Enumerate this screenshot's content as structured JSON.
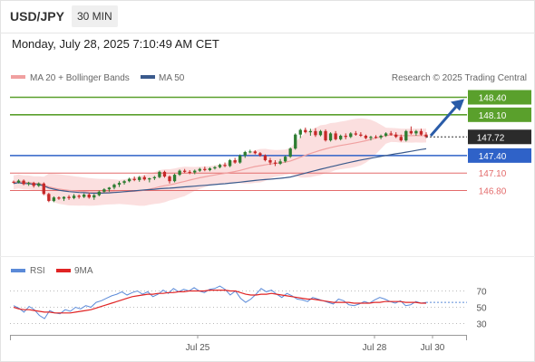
{
  "header": {
    "symbol": "USD/JPY",
    "interval": "30 MIN",
    "datetime": "Monday, July 28, 2025 7:10:49 AM CET"
  },
  "legend": {
    "ma20_bb": "MA 20 + Bollinger Bands",
    "ma50": "MA 50",
    "credit": "Research © 2025 Trading Central"
  },
  "colors": {
    "up": "#2e7d32",
    "down": "#c62828",
    "resistance": "#5aa02c",
    "support": "#2f62c8",
    "minor_support": "#e36b6b",
    "ma20": "#f0a0a0",
    "bollinger_fill": "#fbdcdc",
    "ma50": "#3a5a8c",
    "rsi": "#5b8ad8",
    "rsi_ma": "#e02424",
    "arrow": "#2a5ca8",
    "last_price_bg": "#2b2b2b"
  },
  "chart_data": [
    {
      "type": "candlestick",
      "title": "",
      "yrange": [
        146.5,
        148.5
      ],
      "levels": [
        {
          "value": 148.4,
          "label": "148.40",
          "role": "resistance"
        },
        {
          "value": 148.1,
          "label": "148.10",
          "role": "resistance"
        },
        {
          "value": 147.4,
          "label": "147.40",
          "role": "pivot"
        },
        {
          "value": 147.1,
          "label": "147.10",
          "role": "support"
        },
        {
          "value": 146.8,
          "label": "146.80",
          "role": "support"
        }
      ],
      "last_price": {
        "value": 147.72,
        "label": "147.72"
      },
      "candles_ohlc": [
        [
          146.95,
          146.97,
          146.92,
          146.94
        ],
        [
          146.94,
          146.99,
          146.92,
          146.97
        ],
        [
          146.97,
          146.99,
          146.89,
          146.91
        ],
        [
          146.91,
          146.95,
          146.88,
          146.93
        ],
        [
          146.93,
          146.95,
          146.85,
          146.88
        ],
        [
          146.88,
          146.94,
          146.86,
          146.92
        ],
        [
          146.92,
          146.94,
          146.72,
          146.74
        ],
        [
          146.74,
          146.76,
          146.6,
          146.62
        ],
        [
          146.62,
          146.7,
          146.6,
          146.68
        ],
        [
          146.68,
          146.7,
          146.64,
          146.66
        ],
        [
          146.66,
          146.7,
          146.62,
          146.69
        ],
        [
          146.69,
          146.72,
          146.64,
          146.67
        ],
        [
          146.67,
          146.74,
          146.65,
          146.71
        ],
        [
          146.71,
          146.73,
          146.66,
          146.69
        ],
        [
          146.69,
          146.75,
          146.67,
          146.73
        ],
        [
          146.73,
          146.76,
          146.66,
          146.68
        ],
        [
          146.68,
          146.74,
          146.64,
          146.72
        ],
        [
          146.72,
          146.8,
          146.7,
          146.78
        ],
        [
          146.78,
          146.84,
          146.76,
          146.82
        ],
        [
          146.82,
          146.86,
          146.78,
          146.85
        ],
        [
          146.85,
          146.92,
          146.82,
          146.9
        ],
        [
          146.9,
          146.96,
          146.86,
          146.93
        ],
        [
          146.93,
          146.98,
          146.9,
          146.96
        ],
        [
          146.96,
          147.02,
          146.94,
          147.0
        ],
        [
          147.0,
          147.04,
          146.96,
          146.98
        ],
        [
          146.98,
          147.05,
          146.95,
          147.03
        ],
        [
          147.03,
          147.06,
          146.97,
          146.99
        ],
        [
          146.99,
          147.02,
          146.94,
          147.01
        ],
        [
          147.01,
          147.05,
          146.98,
          147.03
        ],
        [
          147.03,
          147.14,
          147.01,
          147.12
        ],
        [
          147.12,
          147.14,
          147.02,
          147.04
        ],
        [
          147.04,
          147.06,
          146.92,
          146.96
        ],
        [
          146.96,
          147.09,
          146.94,
          147.07
        ],
        [
          147.07,
          147.16,
          147.05,
          147.14
        ],
        [
          147.14,
          147.17,
          147.1,
          147.12
        ],
        [
          147.12,
          147.15,
          147.08,
          147.11
        ],
        [
          147.11,
          147.16,
          147.08,
          147.14
        ],
        [
          147.14,
          147.19,
          147.12,
          147.17
        ],
        [
          147.17,
          147.21,
          147.13,
          147.15
        ],
        [
          147.15,
          147.2,
          147.13,
          147.18
        ],
        [
          147.18,
          147.22,
          147.16,
          147.2
        ],
        [
          147.2,
          147.26,
          147.18,
          147.24
        ],
        [
          147.24,
          147.28,
          147.2,
          147.22
        ],
        [
          147.22,
          147.34,
          147.2,
          147.32
        ],
        [
          147.32,
          147.36,
          147.26,
          147.28
        ],
        [
          147.28,
          147.42,
          147.26,
          147.4
        ],
        [
          147.4,
          147.48,
          147.36,
          147.46
        ],
        [
          147.46,
          147.5,
          147.44,
          147.47
        ],
        [
          147.47,
          147.49,
          147.42,
          147.44
        ],
        [
          147.44,
          147.46,
          147.38,
          147.4
        ],
        [
          147.4,
          147.42,
          147.3,
          147.32
        ],
        [
          147.32,
          147.36,
          147.24,
          147.28
        ],
        [
          147.28,
          147.32,
          147.22,
          147.26
        ],
        [
          147.26,
          147.34,
          147.24,
          147.3
        ],
        [
          147.3,
          147.4,
          147.28,
          147.38
        ],
        [
          147.38,
          147.54,
          147.36,
          147.52
        ],
        [
          147.52,
          147.78,
          147.5,
          147.76
        ],
        [
          147.76,
          147.86,
          147.7,
          147.84
        ],
        [
          147.84,
          147.88,
          147.78,
          147.8
        ],
        [
          147.8,
          147.86,
          147.74,
          147.82
        ],
        [
          147.82,
          147.87,
          147.72,
          147.75
        ],
        [
          147.75,
          147.84,
          147.73,
          147.82
        ],
        [
          147.82,
          147.85,
          147.64,
          147.66
        ],
        [
          147.66,
          147.8,
          147.64,
          147.78
        ],
        [
          147.78,
          147.82,
          147.66,
          147.68
        ],
        [
          147.68,
          147.76,
          147.66,
          147.74
        ],
        [
          147.74,
          147.78,
          147.68,
          147.72
        ],
        [
          147.72,
          147.8,
          147.7,
          147.78
        ],
        [
          147.78,
          147.82,
          147.74,
          147.76
        ],
        [
          147.76,
          147.8,
          147.72,
          147.74
        ],
        [
          147.74,
          147.76,
          147.68,
          147.7
        ],
        [
          147.7,
          147.74,
          147.66,
          147.72
        ],
        [
          147.72,
          147.75,
          147.69,
          147.71
        ],
        [
          147.71,
          147.76,
          147.68,
          147.74
        ],
        [
          147.74,
          147.8,
          147.72,
          147.78
        ],
        [
          147.78,
          147.82,
          147.74,
          147.76
        ],
        [
          147.76,
          147.8,
          147.7,
          147.72
        ],
        [
          147.72,
          147.76,
          147.64,
          147.66
        ],
        [
          147.66,
          147.84,
          147.64,
          147.82
        ],
        [
          147.82,
          147.9,
          147.76,
          147.78
        ],
        [
          147.78,
          147.84,
          147.74,
          147.82
        ],
        [
          147.82,
          147.86,
          147.74,
          147.76
        ],
        [
          147.76,
          147.8,
          147.7,
          147.72
        ]
      ]
    },
    {
      "type": "line",
      "title": "",
      "legend": [
        "RSI",
        "9MA"
      ],
      "yticks": [
        70,
        50,
        30
      ],
      "ylim": [
        20,
        80
      ],
      "xticks": [
        "Jul 25",
        "Jul 28",
        "Jul 30"
      ],
      "series": [
        {
          "name": "RSI",
          "values": [
            52,
            49,
            44,
            51,
            47,
            40,
            36,
            46,
            43,
            42,
            47,
            45,
            50,
            48,
            52,
            50,
            56,
            58,
            61,
            64,
            66,
            69,
            65,
            68,
            70,
            66,
            69,
            63,
            66,
            71,
            67,
            73,
            69,
            72,
            70,
            74,
            70,
            68,
            72,
            73,
            76,
            72,
            65,
            70,
            61,
            56,
            60,
            66,
            73,
            69,
            71,
            66,
            62,
            67,
            64,
            60,
            59,
            57,
            62,
            60,
            58,
            56,
            54,
            60,
            58,
            53,
            52,
            54,
            57,
            55,
            59,
            62,
            60,
            57,
            55,
            58,
            52,
            53,
            57,
            55,
            56
          ]
        },
        {
          "name": "9MA",
          "values": [
            50,
            48,
            47,
            47,
            46,
            45,
            44,
            44,
            43,
            43,
            43,
            43,
            44,
            45,
            46,
            47,
            49,
            51,
            53,
            55,
            57,
            59,
            61,
            63,
            64,
            65,
            66,
            66,
            67,
            67,
            68,
            68,
            69,
            69,
            70,
            70,
            70,
            70,
            71,
            71,
            71,
            71,
            70,
            70,
            68,
            66,
            65,
            65,
            66,
            66,
            67,
            66,
            65,
            64,
            63,
            62,
            61,
            60,
            60,
            59,
            58,
            57,
            56,
            56,
            56,
            56,
            55,
            55,
            55,
            55,
            56,
            56,
            57,
            57,
            57,
            57,
            56,
            56,
            56,
            55,
            55
          ]
        }
      ]
    }
  ]
}
